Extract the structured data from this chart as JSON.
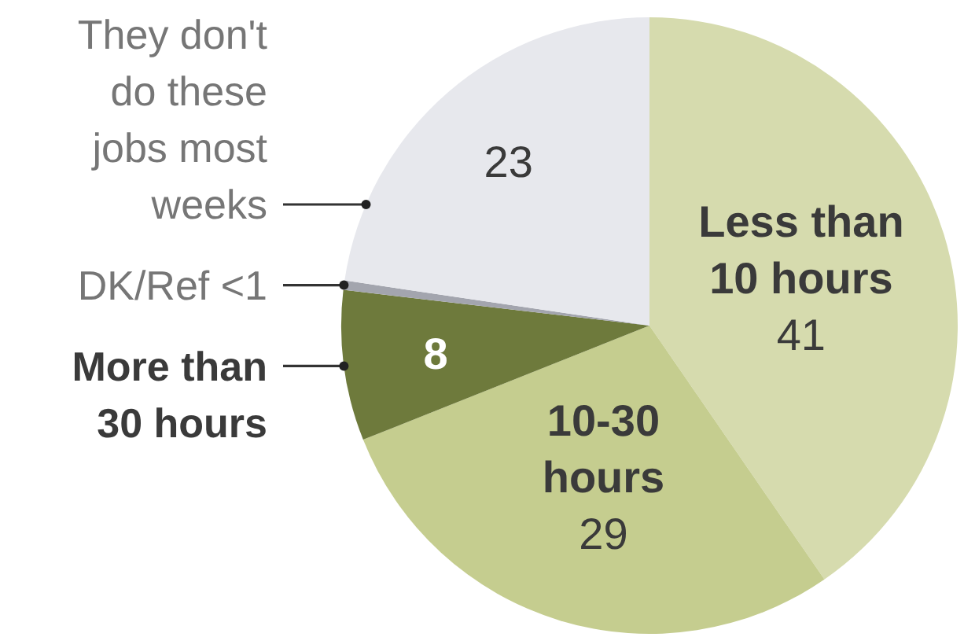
{
  "chart_data": {
    "type": "pie",
    "categories": [
      "Less than 10 hours",
      "10-30 hours",
      "More than 30 hours",
      "DK/Ref",
      "They don't do these jobs most weeks"
    ],
    "values": [
      41,
      29,
      8,
      0.5,
      23
    ],
    "colors": [
      "#d6dbae",
      "#c5cd8f",
      "#6e7a3c",
      "#a3a5ae",
      "#e7e8ed"
    ],
    "value_labels": [
      "41",
      "29",
      "8",
      "<1",
      "23"
    ]
  }
}
